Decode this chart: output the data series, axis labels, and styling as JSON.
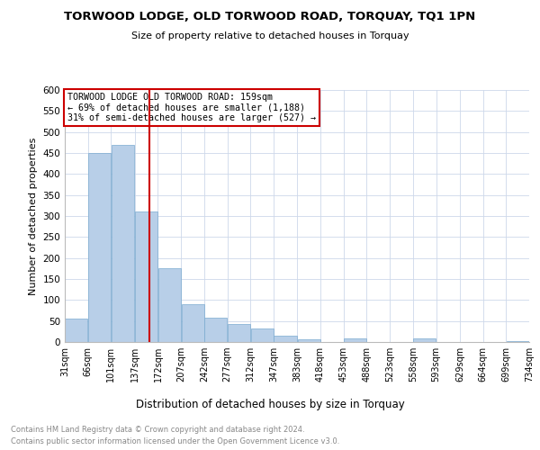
{
  "title": "TORWOOD LODGE, OLD TORWOOD ROAD, TORQUAY, TQ1 1PN",
  "subtitle": "Size of property relative to detached houses in Torquay",
  "xlabel": "Distribution of detached houses by size in Torquay",
  "ylabel": "Number of detached properties",
  "bar_edges": [
    31,
    66,
    101,
    137,
    172,
    207,
    242,
    277,
    312,
    347,
    383,
    418,
    453,
    488,
    523,
    558,
    593,
    629,
    664,
    699,
    734
  ],
  "bar_heights": [
    55,
    450,
    470,
    310,
    175,
    90,
    58,
    42,
    32,
    15,
    7,
    1,
    8,
    1,
    1,
    8,
    0,
    1,
    0,
    3
  ],
  "bar_color": "#b8cfe8",
  "bar_edge_color": "#7aaad0",
  "reference_line_x": 159,
  "reference_line_color": "#cc0000",
  "ylim": [
    0,
    600
  ],
  "yticks": [
    0,
    50,
    100,
    150,
    200,
    250,
    300,
    350,
    400,
    450,
    500,
    550,
    600
  ],
  "annotation_line1": "TORWOOD LODGE OLD TORWOOD ROAD: 159sqm",
  "annotation_line2": "← 69% of detached houses are smaller (1,188)",
  "annotation_line3": "31% of semi-detached houses are larger (527) →",
  "annotation_box_color": "#cc0000",
  "footer_line1": "Contains HM Land Registry data © Crown copyright and database right 2024.",
  "footer_line2": "Contains public sector information licensed under the Open Government Licence v3.0.",
  "background_color": "#ffffff",
  "grid_color": "#cdd8ea"
}
